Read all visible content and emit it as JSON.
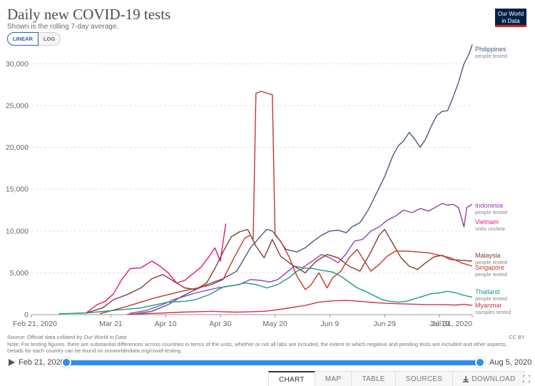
{
  "header": {
    "title": "Daily new COVID-19 tests",
    "subtitle": "Shown is the rolling 7-day average.",
    "logo_line1": "Our World",
    "logo_line2": "in Data"
  },
  "scale_toggle": {
    "linear_label": "LINEAR",
    "log_label": "LOG"
  },
  "footer": {
    "source": "Source: Official data collated by Our World in Data",
    "note": "Note: For testing figures, there are substantial differences across countries in terms of the units, whether or not all labs are included, the extent to which negative and pending tests are included and other aspects. Details for each country can be found on ourworldindata.org/covid-testing.",
    "license": "CC BY"
  },
  "timeline": {
    "start_label": "Feb 21, 2020",
    "end_label": "Aug 5, 2020"
  },
  "tabs": {
    "chart": "CHART",
    "map": "MAP",
    "table": "TABLE",
    "sources": "SOURCES",
    "download": "DOWNLOAD"
  },
  "colors": {
    "Philippines": "#4a5a80",
    "Indonesia": "#8e44ad",
    "Vietnam": "#e01a79",
    "Malaysia": "#8b3a2f",
    "Singapore": "#c0392b",
    "Thailand": "#1a9a8a",
    "Myanmar": "#d6304a"
  },
  "chart_data": {
    "type": "line",
    "xlim": [
      0,
      161
    ],
    "ylim": [
      0,
      32000
    ],
    "x_ticks": [
      {
        "day": 0,
        "label": "Feb 21, 2020"
      },
      {
        "day": 29,
        "label": "Mar 21"
      },
      {
        "day": 49,
        "label": "Apr 10"
      },
      {
        "day": 69,
        "label": "Apr 30"
      },
      {
        "day": 89,
        "label": "May 20"
      },
      {
        "day": 109,
        "label": "Jun 9"
      },
      {
        "day": 129,
        "label": "Jun 29"
      },
      {
        "day": 149,
        "label": "Jul 19"
      },
      {
        "day": 161,
        "label": "Jul 31, 2020"
      }
    ],
    "y_ticks": [
      {
        "value": 0,
        "label": "0"
      },
      {
        "value": 5000,
        "label": "5,000"
      },
      {
        "value": 10000,
        "label": "10,000"
      },
      {
        "value": 15000,
        "label": "15,000"
      },
      {
        "value": 20000,
        "label": "20,000"
      },
      {
        "value": 25000,
        "label": "25,000"
      },
      {
        "value": 30000,
        "label": "30,000"
      }
    ],
    "series": [
      {
        "name": "Philippines",
        "unit": "people tested",
        "points": [
          [
            38,
            100
          ],
          [
            44,
            400
          ],
          [
            50,
            1200
          ],
          [
            55,
            2200
          ],
          [
            60,
            3000
          ],
          [
            65,
            3700
          ],
          [
            70,
            4300
          ],
          [
            75,
            5200
          ],
          [
            80,
            8000
          ],
          [
            84,
            9500
          ],
          [
            86,
            10200
          ],
          [
            88,
            10000
          ],
          [
            90,
            9200
          ],
          [
            93,
            7800
          ],
          [
            97,
            7500
          ],
          [
            100,
            8000
          ],
          [
            103,
            8800
          ],
          [
            106,
            9500
          ],
          [
            109,
            10000
          ],
          [
            112,
            10100
          ],
          [
            115,
            9800
          ],
          [
            117,
            10500
          ],
          [
            120,
            11000
          ],
          [
            123,
            12500
          ],
          [
            126,
            14500
          ],
          [
            129,
            16500
          ],
          [
            132,
            19000
          ],
          [
            134,
            20200
          ],
          [
            136,
            20800
          ],
          [
            138,
            21800
          ],
          [
            140,
            21000
          ],
          [
            142,
            20000
          ],
          [
            144,
            21000
          ],
          [
            146,
            22500
          ],
          [
            148,
            23800
          ],
          [
            150,
            24300
          ],
          [
            152,
            24400
          ],
          [
            154,
            26000
          ],
          [
            156,
            27800
          ],
          [
            158,
            30000
          ],
          [
            160,
            31300
          ],
          [
            161,
            32300
          ]
        ]
      },
      {
        "name": "Indonesia",
        "unit": "people tested",
        "points": [
          [
            36,
            150
          ],
          [
            42,
            500
          ],
          [
            48,
            1200
          ],
          [
            52,
            1800
          ],
          [
            56,
            2200
          ],
          [
            60,
            2600
          ],
          [
            64,
            2900
          ],
          [
            68,
            3200
          ],
          [
            72,
            3400
          ],
          [
            76,
            3600
          ],
          [
            80,
            4200
          ],
          [
            84,
            4100
          ],
          [
            87,
            3900
          ],
          [
            90,
            4200
          ],
          [
            93,
            5000
          ],
          [
            96,
            5800
          ],
          [
            99,
            5600
          ],
          [
            103,
            6500
          ],
          [
            106,
            7200
          ],
          [
            109,
            6800
          ],
          [
            112,
            6200
          ],
          [
            115,
            7300
          ],
          [
            118,
            8800
          ],
          [
            121,
            9000
          ],
          [
            124,
            10000
          ],
          [
            127,
            10500
          ],
          [
            130,
            11300
          ],
          [
            133,
            11800
          ],
          [
            136,
            12500
          ],
          [
            139,
            12200
          ],
          [
            142,
            12700
          ],
          [
            145,
            12400
          ],
          [
            148,
            12900
          ],
          [
            150,
            13300
          ],
          [
            152,
            13100
          ],
          [
            154,
            13200
          ],
          [
            156,
            12800
          ],
          [
            158,
            10500
          ],
          [
            159,
            12800
          ],
          [
            161,
            13200
          ]
        ]
      },
      {
        "name": "Vietnam",
        "unit": "units unclear",
        "points": [
          [
            15,
            150
          ],
          [
            20,
            200
          ],
          [
            24,
            1200
          ],
          [
            27,
            1600
          ],
          [
            30,
            2500
          ],
          [
            33,
            4200
          ],
          [
            36,
            5500
          ],
          [
            40,
            5600
          ],
          [
            44,
            6400
          ],
          [
            47,
            5800
          ],
          [
            50,
            5000
          ],
          [
            53,
            3800
          ],
          [
            56,
            4100
          ],
          [
            59,
            4900
          ],
          [
            62,
            5700
          ],
          [
            65,
            7000
          ],
          [
            67,
            8000
          ],
          [
            69,
            6400
          ],
          [
            71,
            10900
          ]
        ]
      },
      {
        "name": "Malaysia",
        "unit": "people tested",
        "points": [
          [
            20,
            200
          ],
          [
            26,
            800
          ],
          [
            30,
            1800
          ],
          [
            35,
            2400
          ],
          [
            40,
            3200
          ],
          [
            44,
            4300
          ],
          [
            48,
            4800
          ],
          [
            52,
            4000
          ],
          [
            56,
            3200
          ],
          [
            60,
            3000
          ],
          [
            64,
            3800
          ],
          [
            67,
            5500
          ],
          [
            70,
            7500
          ],
          [
            73,
            9300
          ],
          [
            76,
            9900
          ],
          [
            79,
            10200
          ],
          [
            82,
            8200
          ],
          [
            85,
            6800
          ],
          [
            88,
            9000
          ],
          [
            91,
            7000
          ],
          [
            95,
            6000
          ],
          [
            100,
            5000
          ],
          [
            104,
            6400
          ],
          [
            108,
            7200
          ],
          [
            112,
            6800
          ],
          [
            116,
            5800
          ],
          [
            120,
            5200
          ],
          [
            124,
            7500
          ],
          [
            127,
            9500
          ],
          [
            129,
            10200
          ],
          [
            132,
            8500
          ],
          [
            135,
            6800
          ],
          [
            138,
            5800
          ],
          [
            141,
            5400
          ],
          [
            144,
            6200
          ],
          [
            147,
            6900
          ],
          [
            150,
            7100
          ],
          [
            153,
            6600
          ],
          [
            157,
            6500
          ],
          [
            161,
            6400
          ]
        ]
      },
      {
        "name": "Singapore",
        "unit": "people tested",
        "points": [
          [
            25,
            100
          ],
          [
            35,
            1000
          ],
          [
            45,
            2000
          ],
          [
            55,
            2800
          ],
          [
            65,
            3500
          ],
          [
            70,
            4200
          ],
          [
            74,
            6800
          ],
          [
            78,
            9200
          ],
          [
            80,
            9500
          ],
          [
            81,
            9000
          ],
          [
            82,
            26500
          ],
          [
            84,
            26700
          ],
          [
            86,
            26500
          ],
          [
            88,
            26300
          ],
          [
            89,
            9500
          ],
          [
            91,
            8800
          ],
          [
            94,
            7000
          ],
          [
            97,
            4600
          ],
          [
            100,
            3000
          ],
          [
            102,
            3500
          ],
          [
            105,
            5000
          ],
          [
            108,
            3200
          ],
          [
            110,
            4400
          ],
          [
            113,
            5200
          ],
          [
            116,
            6800
          ],
          [
            119,
            7800
          ],
          [
            122,
            6200
          ],
          [
            124,
            5200
          ],
          [
            127,
            6000
          ],
          [
            130,
            7000
          ],
          [
            133,
            7600
          ],
          [
            137,
            7600
          ],
          [
            141,
            7500
          ],
          [
            145,
            7400
          ],
          [
            149,
            7100
          ],
          [
            153,
            6800
          ],
          [
            157,
            6200
          ],
          [
            161,
            5800
          ]
        ]
      },
      {
        "name": "Thailand",
        "unit": "people tested",
        "points": [
          [
            10,
            100
          ],
          [
            20,
            200
          ],
          [
            30,
            500
          ],
          [
            40,
            800
          ],
          [
            50,
            1500
          ],
          [
            56,
            1600
          ],
          [
            60,
            1800
          ],
          [
            65,
            2400
          ],
          [
            70,
            3300
          ],
          [
            74,
            3500
          ],
          [
            78,
            3800
          ],
          [
            82,
            3600
          ],
          [
            86,
            3200
          ],
          [
            90,
            3600
          ],
          [
            94,
            4400
          ],
          [
            97,
            5200
          ],
          [
            100,
            5600
          ],
          [
            103,
            5500
          ],
          [
            106,
            5300
          ],
          [
            110,
            5100
          ],
          [
            113,
            4600
          ],
          [
            116,
            3900
          ],
          [
            119,
            3200
          ],
          [
            122,
            2800
          ],
          [
            125,
            2300
          ],
          [
            128,
            1800
          ],
          [
            131,
            1600
          ],
          [
            134,
            1500
          ],
          [
            137,
            1600
          ],
          [
            140,
            1900
          ],
          [
            143,
            2200
          ],
          [
            146,
            2500
          ],
          [
            149,
            2600
          ],
          [
            152,
            2800
          ],
          [
            155,
            2600
          ],
          [
            158,
            2300
          ],
          [
            161,
            2100
          ]
        ]
      },
      {
        "name": "Myanmar",
        "unit": "samples tested",
        "points": [
          [
            35,
            50
          ],
          [
            45,
            150
          ],
          [
            55,
            300
          ],
          [
            60,
            350
          ],
          [
            66,
            400
          ],
          [
            70,
            350
          ],
          [
            75,
            300
          ],
          [
            80,
            350
          ],
          [
            85,
            400
          ],
          [
            90,
            600
          ],
          [
            95,
            850
          ],
          [
            100,
            1100
          ],
          [
            105,
            1500
          ],
          [
            110,
            1650
          ],
          [
            115,
            1700
          ],
          [
            120,
            1600
          ],
          [
            125,
            1450
          ],
          [
            130,
            1350
          ],
          [
            135,
            1300
          ],
          [
            140,
            1250
          ],
          [
            145,
            1200
          ],
          [
            150,
            1200
          ],
          [
            155,
            1150
          ],
          [
            158,
            1250
          ],
          [
            161,
            1100
          ]
        ]
      }
    ],
    "label_positions": "right-of-line"
  }
}
